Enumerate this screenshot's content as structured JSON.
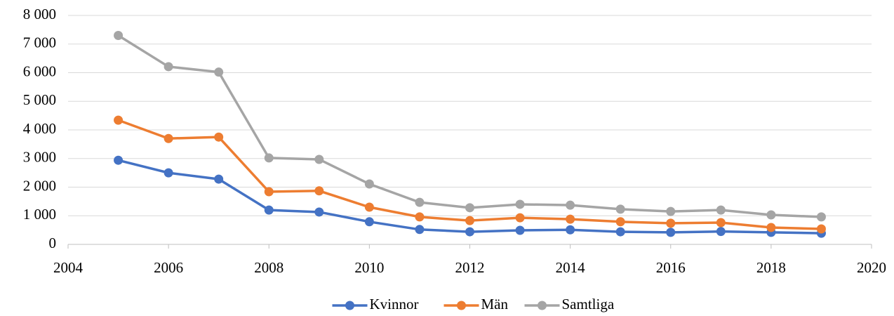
{
  "chart_data": {
    "type": "line",
    "x": [
      2005,
      2006,
      2007,
      2008,
      2009,
      2010,
      2011,
      2012,
      2013,
      2014,
      2015,
      2016,
      2017,
      2018,
      2019
    ],
    "series": [
      {
        "name": "Kvinnor",
        "color": "#4472c4",
        "values": [
          2940,
          2500,
          2280,
          1200,
          1130,
          790,
          520,
          440,
          490,
          510,
          440,
          420,
          450,
          420,
          390
        ]
      },
      {
        "name": "Män",
        "color": "#ed7d31",
        "values": [
          4340,
          3700,
          3750,
          1840,
          1870,
          1300,
          960,
          830,
          930,
          880,
          790,
          740,
          760,
          590,
          540
        ]
      },
      {
        "name": "Samtliga",
        "color": "#a5a5a5",
        "values": [
          7300,
          6210,
          6020,
          3020,
          2970,
          2110,
          1470,
          1280,
          1400,
          1370,
          1230,
          1150,
          1200,
          1030,
          960
        ]
      }
    ],
    "xlim": [
      2004,
      2020
    ],
    "xticks": [
      2004,
      2006,
      2008,
      2010,
      2012,
      2014,
      2016,
      2018,
      2020
    ],
    "ylim": [
      0,
      8000
    ],
    "yticks": [
      0,
      {
        "value": 1000,
        "label": "1 000"
      },
      {
        "value": 2000,
        "label": "2 000"
      },
      {
        "value": 3000,
        "label": "3 000"
      },
      {
        "value": 4000,
        "label": "4 000"
      },
      {
        "value": 5000,
        "label": "5 000"
      },
      {
        "value": 6000,
        "label": "6 000"
      },
      {
        "value": 7000,
        "label": "7 000"
      },
      {
        "value": 8000,
        "label": "8 000"
      }
    ],
    "grid": true,
    "legend": "bottom"
  }
}
